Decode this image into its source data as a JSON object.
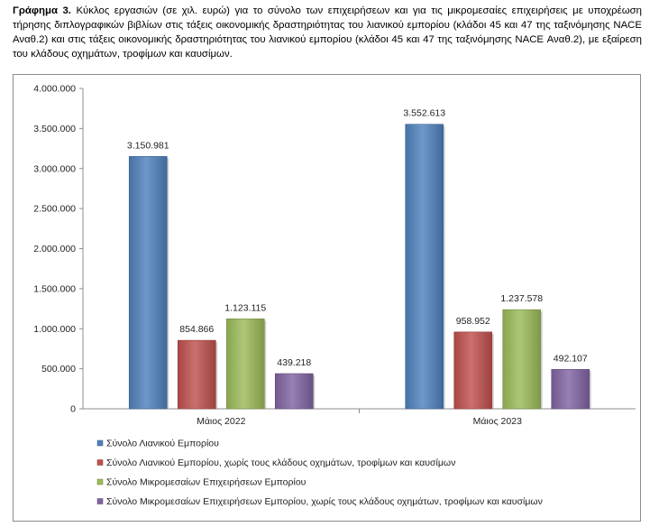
{
  "caption": {
    "bold": "Γράφημα 3.",
    "text": "Κύκλος εργασιών (σε χιλ. ευρώ) για το σύνολο των επιχειρήσεων και για τις μικρομεσαίες επιχειρήσεις με υποχρέωση τήρησης διπλογραφικών βιβλίων στις τάξεις οικονομικής δραστηριότητας του λιανικού εμπορίου (κλάδοι 45 και 47 της ταξινόμησης NACE Αναθ.2) και στις τάξεις οικονομικής δραστηριότητας του λιανικού εμπορίου (κλάδοι 45 και 47 της ταξινόμησης NACE Αναθ.2), με εξαίρεση του κλάδους οχημάτων, τροφίμων και καυσίμων."
  },
  "chart_data": {
    "type": "bar",
    "categories": [
      "Μάιος 2022",
      "Μάιος 2023"
    ],
    "series": [
      {
        "name": "Σύνολο Λιανικού Εμπορίου",
        "values": [
          3150981,
          3552613
        ],
        "labels": [
          "3.150.981",
          "3.552.613"
        ],
        "color": "#4F81BD"
      },
      {
        "name": "Σύνολο Λιανικού Εμπορίου, χωρίς τους κλάδους οχημάτων, τροφίμων και καυσίμων",
        "values": [
          854866,
          958952
        ],
        "labels": [
          "854.866",
          "958.952"
        ],
        "color": "#C0504D"
      },
      {
        "name": "Σύνολο Μικρομεσαίων Επιχειρήσεων Εμπορίου",
        "values": [
          1123115,
          1237578
        ],
        "labels": [
          "1.123.115",
          "1.237.578"
        ],
        "color": "#9BBB59"
      },
      {
        "name": "Σύνολο Μικρομεσαίων Επιχειρήσεων Εμπορίου, χωρίς τους κλάδους οχημάτων, τροφίμων και καυσίμων",
        "values": [
          439218,
          492107
        ],
        "labels": [
          "439.218",
          "492.107"
        ],
        "color": "#8064A2"
      }
    ],
    "ylim": [
      0,
      4000000
    ],
    "yticks": [
      0,
      500000,
      1000000,
      1500000,
      2000000,
      2500000,
      3000000,
      3500000,
      4000000
    ],
    "ytick_labels": [
      "0",
      "500.000",
      "1.000.000",
      "1.500.000",
      "2.000.000",
      "2.500.000",
      "3.000.000",
      "3.500.000",
      "4.000.000"
    ],
    "title": "",
    "xlabel": "",
    "ylabel": "",
    "grid": false,
    "legend_position": "bottom-left"
  }
}
